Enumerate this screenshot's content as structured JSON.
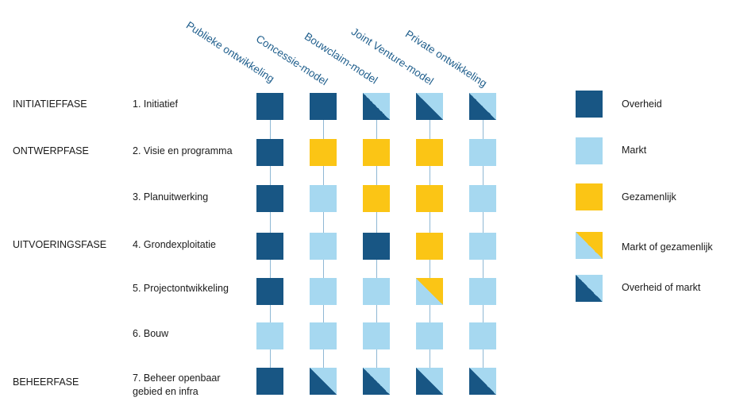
{
  "colors": {
    "overheid": "#185684",
    "markt": "#a6d8f0",
    "gezamenlijk": "#fbc515",
    "line": "#8fb8d4",
    "header": "#1f5e8c"
  },
  "columns": [
    "Publieke ontwikkeling",
    "Concessie-model",
    "Bouwclaim-model",
    "Joint Venture-model",
    "Private ontwikkeling"
  ],
  "phases": [
    "INITIATIEFFASE",
    "ONTWERPFASE",
    "UITVOERINGSFASE",
    "BEHEERFASE"
  ],
  "steps": [
    "1. Initiatief",
    "2. Visie en programma",
    "3. Planuitwerking",
    "4. Grondexploitatie",
    "5. Projectontwikkeling",
    "6. Bouw",
    "7. Beheer openbaar\ngebied en infra"
  ],
  "matrix": [
    [
      "overheid",
      "overheid",
      "overheid-of-markt",
      "overheid-of-markt",
      "overheid-of-markt"
    ],
    [
      "overheid",
      "gezamenlijk",
      "gezamenlijk",
      "gezamenlijk",
      "markt"
    ],
    [
      "overheid",
      "markt",
      "gezamenlijk",
      "gezamenlijk",
      "markt"
    ],
    [
      "overheid",
      "markt",
      "overheid",
      "gezamenlijk",
      "markt"
    ],
    [
      "overheid",
      "markt",
      "markt",
      "markt-of-gezamenlijk",
      "markt"
    ],
    [
      "markt",
      "markt",
      "markt",
      "markt",
      "markt"
    ],
    [
      "overheid",
      "overheid-of-markt",
      "overheid-of-markt",
      "overheid-of-markt",
      "overheid-of-markt"
    ]
  ],
  "legend": [
    {
      "key": "overheid",
      "label": "Overheid"
    },
    {
      "key": "markt",
      "label": "Markt"
    },
    {
      "key": "gezamenlijk",
      "label": "Gezamenlijk"
    },
    {
      "key": "markt-of-gezamenlijk",
      "label": "Markt of gezamenlijk"
    },
    {
      "key": "overheid-of-markt",
      "label": "Overheid of markt"
    }
  ]
}
